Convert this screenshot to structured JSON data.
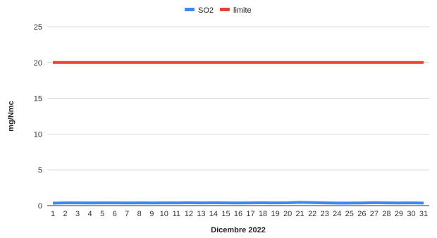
{
  "chart_data": {
    "type": "line",
    "xlabel": "Dicembre 2022",
    "ylabel": "mg/Nmc",
    "ylim": [
      0,
      25
    ],
    "yticks": [
      0,
      5,
      10,
      15,
      20,
      25
    ],
    "grid": true,
    "legend_position": "top-center",
    "categories": [
      "1",
      "2",
      "3",
      "4",
      "5",
      "6",
      "7",
      "8",
      "9",
      "10",
      "11",
      "12",
      "13",
      "14",
      "15",
      "16",
      "17",
      "18",
      "19",
      "20",
      "21",
      "22",
      "23",
      "24",
      "25",
      "26",
      "27",
      "28",
      "29",
      "30",
      "31"
    ],
    "series": [
      {
        "name": "SO2",
        "color": "#4285f4",
        "values": [
          0.35,
          0.38,
          0.38,
          0.37,
          0.38,
          0.38,
          0.37,
          0.38,
          0.37,
          0.38,
          0.38,
          0.39,
          0.38,
          0.39,
          0.38,
          0.37,
          0.38,
          0.39,
          0.38,
          0.39,
          0.45,
          0.42,
          0.38,
          0.36,
          0.36,
          0.37,
          0.41,
          0.38,
          0.37,
          0.38,
          0.36
        ]
      },
      {
        "name": "limite",
        "color": "#e94235",
        "values": [
          20,
          20,
          20,
          20,
          20,
          20,
          20,
          20,
          20,
          20,
          20,
          20,
          20,
          20,
          20,
          20,
          20,
          20,
          20,
          20,
          20,
          20,
          20,
          20,
          20,
          20,
          20,
          20,
          20,
          20,
          20
        ]
      }
    ]
  }
}
